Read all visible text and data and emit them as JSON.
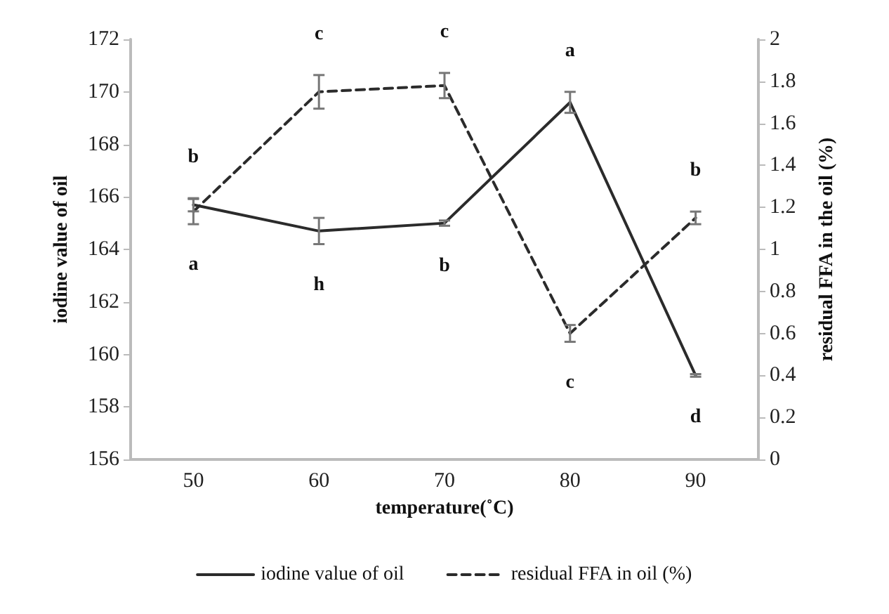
{
  "chart_data": {
    "type": "line",
    "xlabel": "temperature(˚C)",
    "ylabel": "iodine value of oil",
    "y2label": "residual FFA in the oil (%)",
    "categories": [
      "50",
      "60",
      "70",
      "80",
      "90"
    ],
    "series": [
      {
        "name": "iodine value of oil",
        "color": "#2b2b2b",
        "line_style": "solid",
        "values": [
          165.7,
          164.7,
          165.0,
          169.6,
          159.2
        ],
        "errors": [
          0.25,
          0.5,
          0.1,
          0.4,
          0.05
        ],
        "value_labels": [
          "b",
          "h",
          "b",
          "a",
          "d"
        ]
      },
      {
        "name": "residual FFA in oil (%)",
        "color": "#2b2b2b",
        "line_style": "dashed",
        "axis": "y2",
        "values": [
          1.18,
          1.75,
          1.78,
          0.6,
          1.15
        ],
        "errors": [
          0.06,
          0.08,
          0.06,
          0.04,
          0.03
        ],
        "value_labels": [
          "a",
          "c",
          "c",
          "c",
          "b"
        ]
      }
    ],
    "ylim": [
      156,
      172
    ],
    "yticks": [
      156,
      158,
      160,
      162,
      164,
      166,
      168,
      170,
      172
    ],
    "y2lim": [
      0,
      2
    ],
    "y2ticks": [
      0,
      0.2,
      0.4,
      0.6,
      0.8,
      1,
      1.2,
      1.4,
      1.6,
      1.8,
      2
    ],
    "grid": false,
    "legend": "bottom"
  }
}
